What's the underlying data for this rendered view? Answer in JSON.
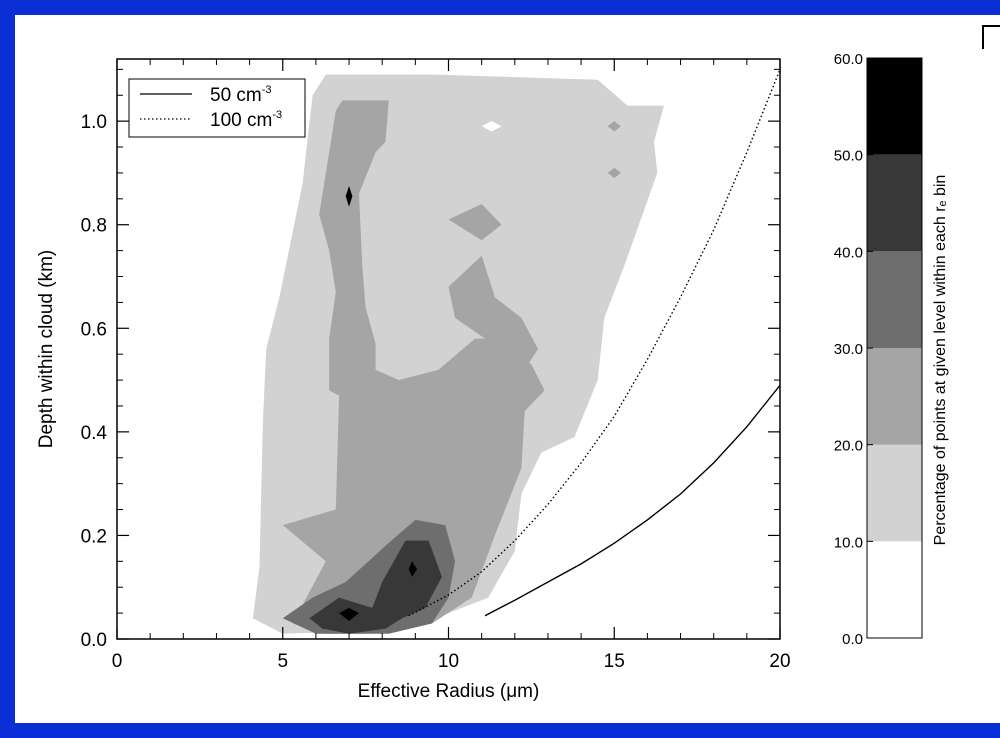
{
  "chart_data": [
    {
      "type": "contour",
      "xlabel": "Effective Radius (μm)",
      "ylabel": "Depth within cloud (km)",
      "xlim": [
        0,
        20
      ],
      "ylim": [
        0,
        1.12
      ],
      "xticks": [
        "0",
        "5",
        "10",
        "15",
        "20"
      ],
      "xtick_values": [
        0,
        5,
        10,
        15,
        20
      ],
      "yticks": [
        "0.0",
        "0.2",
        "0.4",
        "0.6",
        "0.8",
        "1.0"
      ],
      "ytick_values": [
        0,
        0.2,
        0.4,
        0.6,
        0.8,
        1.0
      ],
      "legend": [
        {
          "label": "50 cm",
          "superscript": "-3",
          "style": "solid"
        },
        {
          "label": "100 cm",
          "superscript": "-3",
          "style": "dotted"
        }
      ],
      "legend_position": "top-left",
      "contour_levels": [
        {
          "range": "10-20",
          "color": "#d2d2d2",
          "polygon": [
            [
              4.1,
              0.04
            ],
            [
              4.3,
              0.14
            ],
            [
              4.4,
              0.42
            ],
            [
              4.5,
              0.56
            ],
            [
              4.9,
              0.66
            ],
            [
              5.6,
              0.88
            ],
            [
              5.9,
              1.05
            ],
            [
              6.3,
              1.09
            ],
            [
              9.5,
              1.09
            ],
            [
              14.5,
              1.08
            ],
            [
              15.4,
              1.03
            ],
            [
              16.5,
              1.03
            ],
            [
              16.2,
              0.96
            ],
            [
              16.3,
              0.9
            ],
            [
              15.3,
              0.72
            ],
            [
              14.7,
              0.62
            ],
            [
              14.5,
              0.5
            ],
            [
              13.8,
              0.39
            ],
            [
              12.8,
              0.36
            ],
            [
              12.2,
              0.28
            ],
            [
              12.0,
              0.17
            ],
            [
              11.2,
              0.08
            ],
            [
              9.6,
              0.04
            ],
            [
              7.2,
              0.015
            ],
            [
              5.0,
              0.01
            ]
          ]
        },
        {
          "range": "20-30",
          "color": "#a5a5a5",
          "polygon": [
            [
              5.3,
              0.03
            ],
            [
              6.3,
              0.15
            ],
            [
              5.0,
              0.22
            ],
            [
              6.6,
              0.25
            ],
            [
              6.7,
              0.47
            ],
            [
              6.4,
              0.48
            ],
            [
              6.4,
              0.58
            ],
            [
              6.6,
              0.67
            ],
            [
              6.4,
              0.75
            ],
            [
              6.1,
              0.82
            ],
            [
              6.5,
              0.98
            ],
            [
              6.6,
              1.02
            ],
            [
              6.8,
              1.04
            ],
            [
              8.2,
              1.04
            ],
            [
              8.1,
              0.96
            ],
            [
              7.8,
              0.94
            ],
            [
              7.3,
              0.86
            ],
            [
              7.4,
              0.72
            ],
            [
              7.5,
              0.64
            ],
            [
              7.8,
              0.57
            ],
            [
              7.8,
              0.52
            ],
            [
              8.5,
              0.5
            ],
            [
              9.7,
              0.52
            ],
            [
              10.8,
              0.58
            ],
            [
              11.6,
              0.58
            ],
            [
              12.5,
              0.53
            ],
            [
              12.9,
              0.48
            ],
            [
              12.3,
              0.44
            ],
            [
              12.2,
              0.33
            ],
            [
              11.4,
              0.2
            ],
            [
              10.7,
              0.08
            ],
            [
              9.5,
              0.03
            ],
            [
              7.5,
              0.01
            ],
            [
              6.3,
              0.01
            ]
          ]
        },
        {
          "range": "20-30",
          "color": "#a5a5a5",
          "polygon": [
            [
              10.0,
              0.68
            ],
            [
              10.2,
              0.62
            ],
            [
              11.1,
              0.58
            ],
            [
              11.7,
              0.56
            ],
            [
              12.3,
              0.52
            ],
            [
              12.7,
              0.56
            ],
            [
              12.2,
              0.62
            ],
            [
              11.4,
              0.66
            ],
            [
              11.0,
              0.74
            ],
            [
              10.5,
              0.71
            ]
          ]
        },
        {
          "range": "20-30",
          "color": "#a5a5a5",
          "polygon": [
            [
              10.0,
              0.81
            ],
            [
              11.0,
              0.84
            ],
            [
              11.6,
              0.8
            ],
            [
              11.0,
              0.77
            ]
          ]
        },
        {
          "range": "30-40",
          "color": "#6e6e6e",
          "polygon": [
            [
              5.0,
              0.04
            ],
            [
              5.9,
              0.08
            ],
            [
              6.9,
              0.11
            ],
            [
              8.1,
              0.18
            ],
            [
              9.0,
              0.23
            ],
            [
              9.9,
              0.22
            ],
            [
              10.2,
              0.15
            ],
            [
              10.0,
              0.08
            ],
            [
              9.5,
              0.03
            ],
            [
              8.2,
              0.01
            ],
            [
              6.0,
              0.01
            ]
          ]
        },
        {
          "range": "40-50",
          "color": "#383838",
          "polygon": [
            [
              5.8,
              0.04
            ],
            [
              6.7,
              0.08
            ],
            [
              7.7,
              0.06
            ],
            [
              8.0,
              0.11
            ],
            [
              8.7,
              0.19
            ],
            [
              9.4,
              0.19
            ],
            [
              9.8,
              0.12
            ],
            [
              9.3,
              0.06
            ],
            [
              8.6,
              0.04
            ],
            [
              8.1,
              0.02
            ],
            [
              7.0,
              0.01
            ],
            [
              6.2,
              0.02
            ]
          ]
        },
        {
          "range": "50-60",
          "color": "#000000",
          "polygon": [
            [
              6.7,
              0.05
            ],
            [
              7.0,
              0.06
            ],
            [
              7.3,
              0.05
            ],
            [
              7.0,
              0.035
            ]
          ]
        },
        {
          "range": "50-60",
          "color": "#000000",
          "polygon": [
            [
              8.8,
              0.135
            ],
            [
              8.9,
              0.15
            ],
            [
              9.05,
              0.135
            ],
            [
              8.9,
              0.12
            ]
          ]
        },
        {
          "range": "50-60",
          "color": "#000000",
          "polygon": [
            [
              6.9,
              0.855
            ],
            [
              7.0,
              0.875
            ],
            [
              7.1,
              0.855
            ],
            [
              7.0,
              0.835
            ]
          ]
        },
        {
          "range": "0-10",
          "color": "#ffffff",
          "polygon": [
            [
              11.0,
              0.99
            ],
            [
              11.3,
              1.0
            ],
            [
              11.6,
              0.99
            ],
            [
              11.3,
              0.98
            ]
          ]
        },
        {
          "range": "20-30",
          "color": "#a5a5a5",
          "polygon": [
            [
              14.8,
              0.99
            ],
            [
              15.0,
              1.0
            ],
            [
              15.2,
              0.99
            ],
            [
              15.0,
              0.98
            ]
          ]
        },
        {
          "range": "20-30",
          "color": "#a5a5a5",
          "polygon": [
            [
              14.8,
              0.9
            ],
            [
              15.0,
              0.91
            ],
            [
              15.2,
              0.9
            ],
            [
              15.0,
              0.89
            ]
          ]
        }
      ],
      "series": [
        {
          "name": "50 cm-3",
          "style": "solid",
          "x": [
            11.1,
            12.0,
            13.0,
            14.0,
            15.0,
            16.0,
            17.0,
            18.0,
            19.0,
            20.0
          ],
          "y": [
            0.045,
            0.075,
            0.11,
            0.145,
            0.185,
            0.23,
            0.28,
            0.34,
            0.41,
            0.49
          ]
        },
        {
          "name": "100 cm-3",
          "style": "dotted",
          "x": [
            8.8,
            10.0,
            11.0,
            12.0,
            13.0,
            14.0,
            15.0,
            16.0,
            17.0,
            18.0,
            19.0,
            20.0
          ],
          "y": [
            0.045,
            0.085,
            0.13,
            0.19,
            0.26,
            0.34,
            0.43,
            0.54,
            0.66,
            0.79,
            0.94,
            1.1
          ]
        }
      ]
    },
    {
      "type": "colorbar",
      "ylabel": "Percentage of points at given level within each rₑ bin",
      "ticks": [
        "0.0",
        "10.0",
        "20.0",
        "30.0",
        "40.0",
        "50.0",
        "60.0"
      ],
      "tick_values": [
        0,
        10,
        20,
        30,
        40,
        50,
        60
      ],
      "ylim": [
        0,
        60
      ],
      "bands": [
        {
          "from": 0,
          "to": 10,
          "color": "#ffffff"
        },
        {
          "from": 10,
          "to": 20,
          "color": "#d2d2d2"
        },
        {
          "from": 20,
          "to": 30,
          "color": "#a5a5a5"
        },
        {
          "from": 30,
          "to": 40,
          "color": "#6e6e6e"
        },
        {
          "from": 40,
          "to": 50,
          "color": "#383838"
        },
        {
          "from": 50,
          "to": 60,
          "color": "#000000"
        }
      ]
    }
  ]
}
